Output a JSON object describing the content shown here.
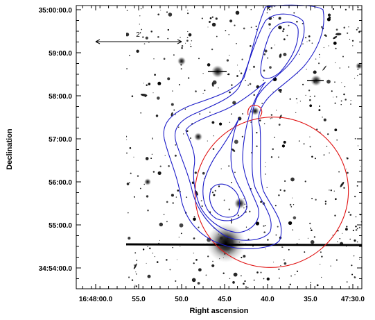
{
  "axes": {
    "xlabel": "Right ascension",
    "ylabel": "Declination",
    "x_ticks": [
      "16:48:00.0",
      "55.0",
      "50.0",
      "45.0",
      "40.0",
      "35.0",
      "47:30.0"
    ],
    "y_ticks": [
      "35:00:00.0",
      "59:00.0",
      "58:00.0",
      "57:00.0",
      "56:00.0",
      "55:00.0",
      "34:54:00.0"
    ]
  },
  "scale_bar": {
    "label": "2'"
  },
  "colors": {
    "contour": "#1a1ac8",
    "ellipse": "#e01010",
    "frame": "#000000",
    "stars": "#1a1a1a"
  }
}
